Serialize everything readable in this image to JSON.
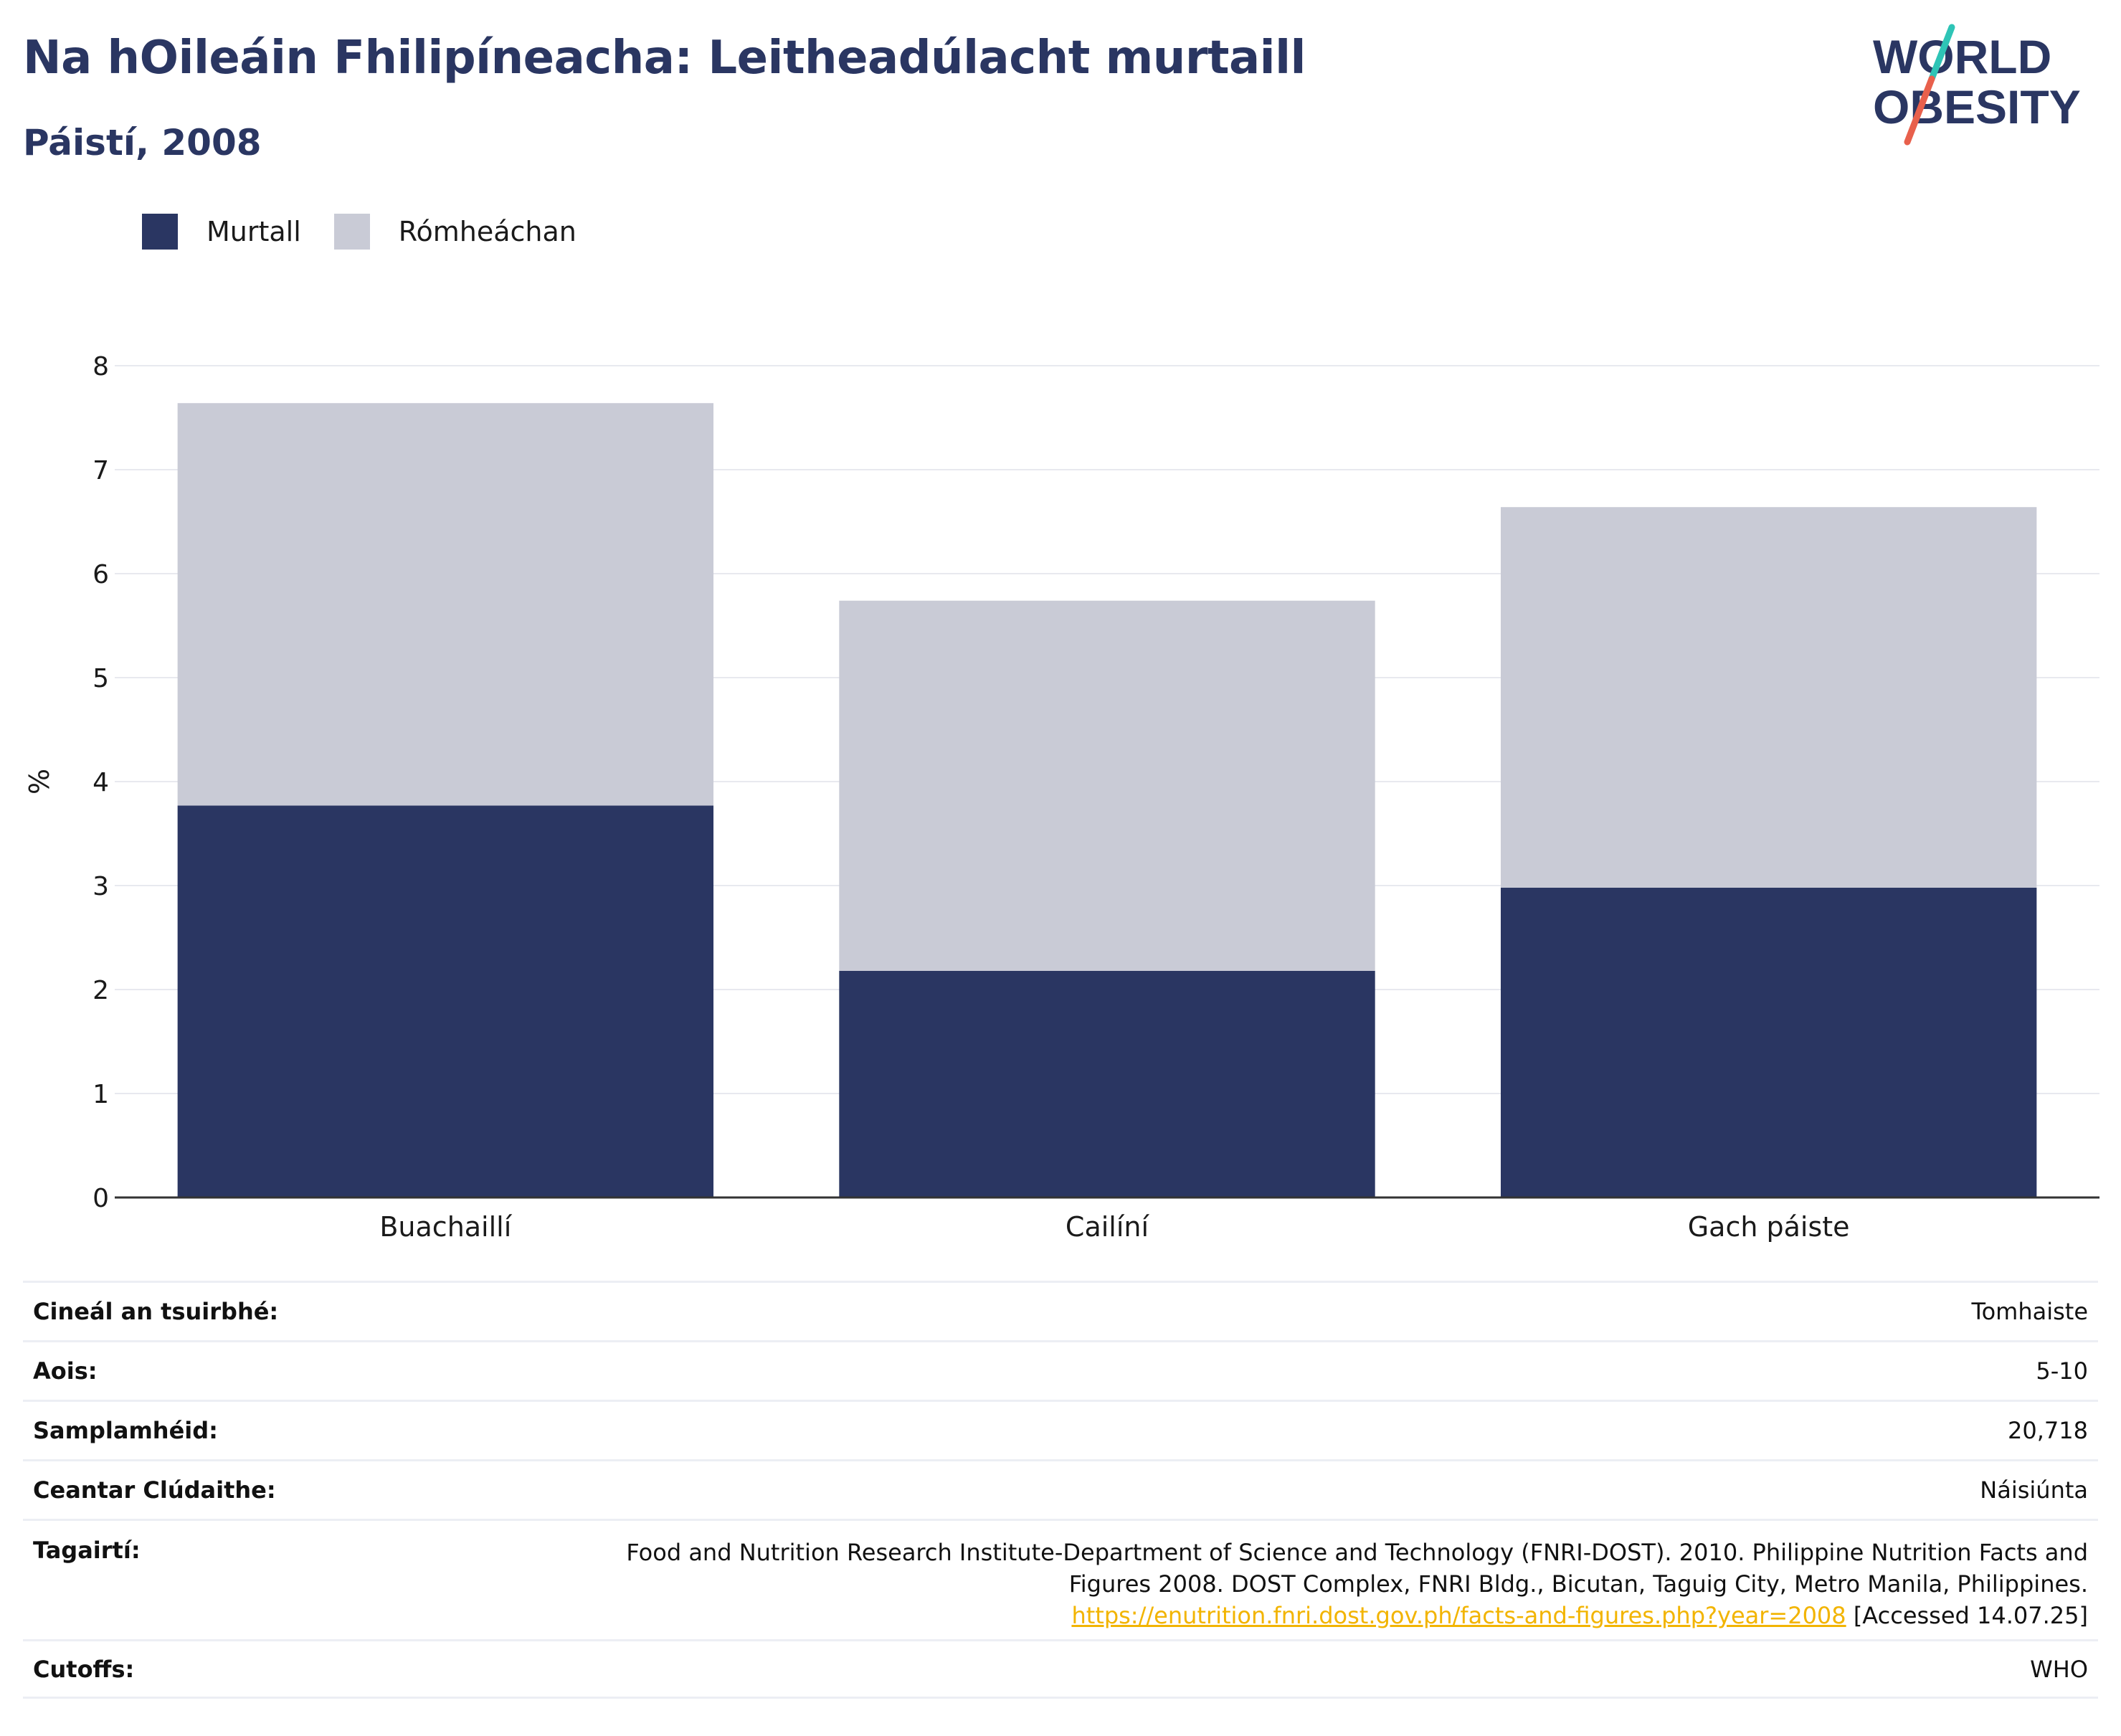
{
  "header": {
    "title": "Na hOileáin Fhilipíneacha: Leitheadúlacht murtaill",
    "subtitle": "Páistí, 2008"
  },
  "logo": {
    "line1": "WORLD",
    "line2": "OBESITY",
    "slash_colors": [
      "#2ec4b6",
      "#e8604c"
    ],
    "text_color": "#2a3662"
  },
  "legend": [
    {
      "label": "Murtall",
      "color": "#2a3662"
    },
    {
      "label": "Rómheáchan",
      "color": "#c9cbd6"
    }
  ],
  "chart_data": {
    "type": "bar",
    "stacked": true,
    "categories": [
      "Buachaillí",
      "Cailíní",
      "Gach páiste"
    ],
    "series": [
      {
        "name": "Murtall",
        "color": "#2a3662",
        "values": [
          3.77,
          2.18,
          2.98
        ]
      },
      {
        "name": "Rómheáchan",
        "color": "#c9cbd6",
        "values": [
          3.87,
          3.56,
          3.66
        ]
      }
    ],
    "ylabel": "%",
    "ylim": [
      0,
      8
    ],
    "yticks": [
      0,
      1,
      2,
      3,
      4,
      5,
      6,
      7,
      8
    ],
    "grid": true
  },
  "info": {
    "survey_type": {
      "label": "Cineál an tsuirbhé:",
      "value": "Tomhaiste"
    },
    "age": {
      "label": "Aois:",
      "value": "5-10"
    },
    "sample_size": {
      "label": "Samplamhéid:",
      "value": "20,718"
    },
    "area": {
      "label": "Ceantar Clúdaithe:",
      "value": "Náisiúnta"
    },
    "references": {
      "label": "Tagairtí:",
      "text_before": "Food and Nutrition Research Institute-Department of Science and Technology (FNRI-DOST). 2010. Philippine Nutrition Facts and Figures 2008. DOST Complex, FNRI Bldg., Bicutan, Taguig City, Metro Manila, Philippines. ",
      "link": "https://enutrition.fnri.dost.gov.ph/facts-and-figures.php?year=2008",
      "text_after": " [Accessed 14.07.25]"
    },
    "cutoffs": {
      "label": "Cutoffs:",
      "value": "WHO"
    }
  }
}
